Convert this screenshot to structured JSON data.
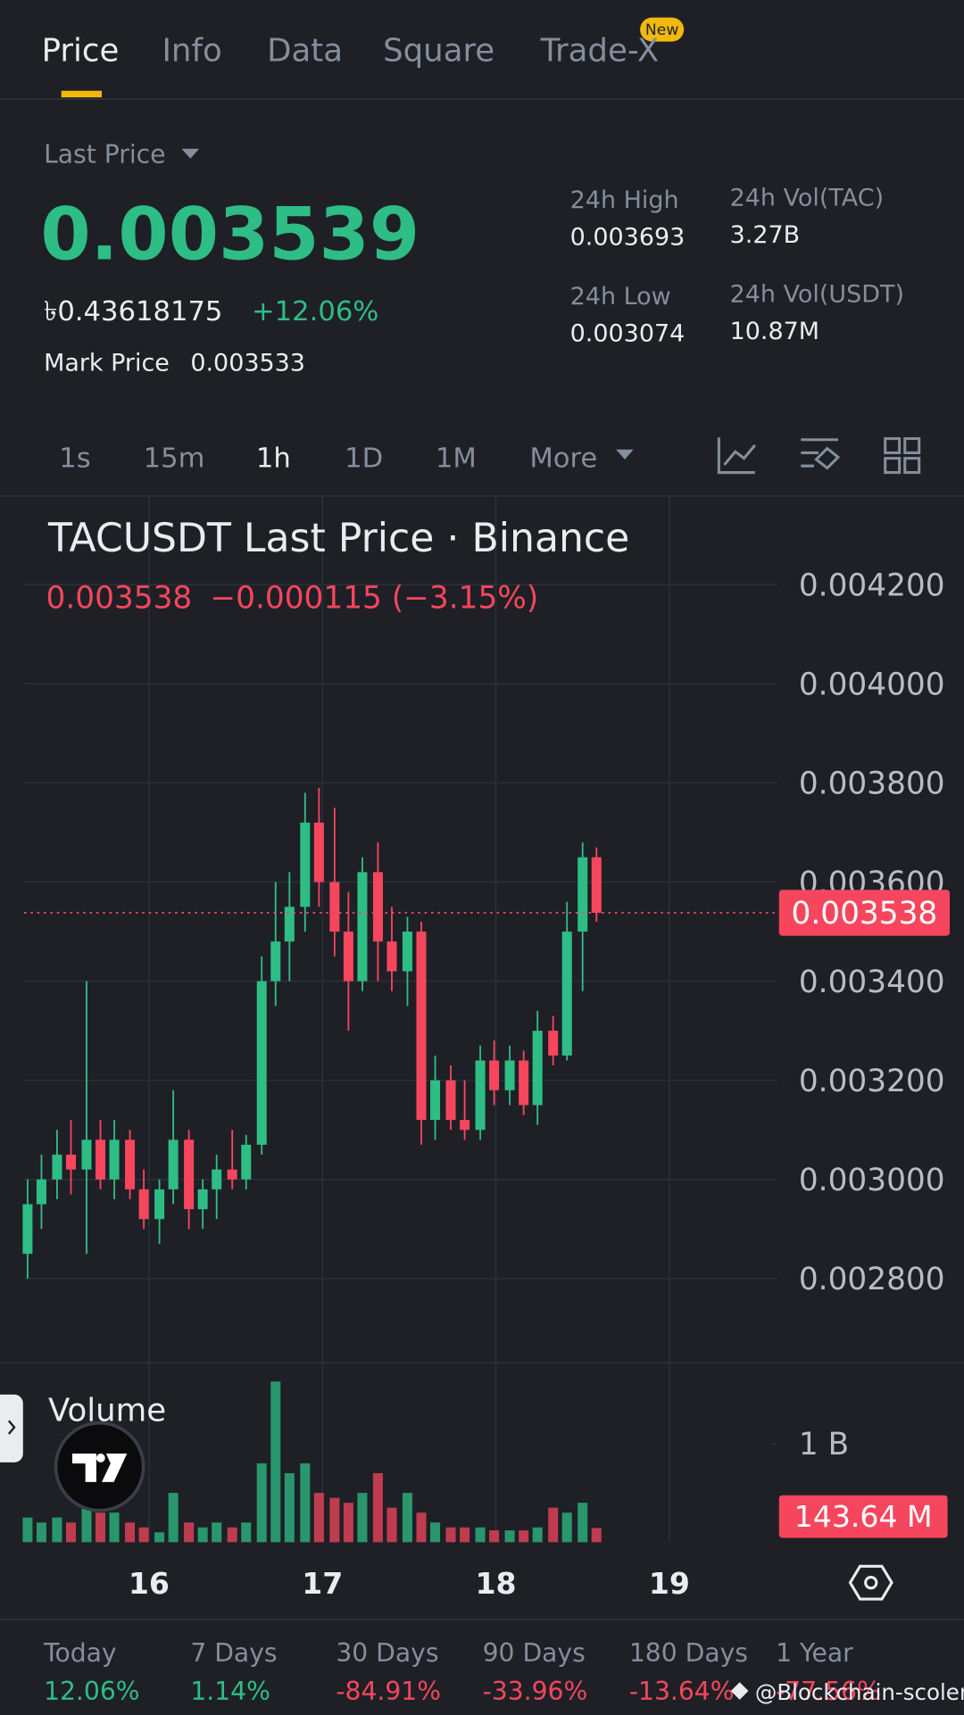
{
  "tabs": [
    "Price",
    "Info",
    "Data",
    "Square",
    "Trade-X"
  ],
  "badge": "New",
  "ticker": {
    "last_price_label": "Last Price",
    "last_price": "0.003539",
    "fiat": "৳0.43618175",
    "change": "+12.06%",
    "mark_price_label": "Mark Price",
    "mark_price": "0.003533",
    "stats": [
      {
        "label": "24h High",
        "value": "0.003693"
      },
      {
        "label": "24h Low",
        "value": "0.003074"
      },
      {
        "label": "24h Vol(TAC)",
        "value": "3.27B"
      },
      {
        "label": "24h Vol(USDT)",
        "value": "10.87M"
      }
    ]
  },
  "intervals": [
    "1s",
    "15m",
    "1h",
    "1D",
    "1M",
    "More"
  ],
  "chart_data": {
    "type": "candlestick",
    "title": "TACUSDT Last Price · Binance",
    "subtitle": "−0.000115 (−3.15%)",
    "last_price": 0.003538,
    "up_color": "#2ebd85",
    "down_color": "#f6465d",
    "grid": true,
    "x": [
      15.3,
      15.38,
      15.47,
      15.55,
      15.64,
      15.72,
      15.8,
      15.89,
      15.97,
      16.06,
      16.14,
      16.23,
      16.31,
      16.39,
      16.48,
      16.56,
      16.65,
      16.73,
      16.81,
      16.9,
      16.98,
      17.07,
      17.15,
      17.23,
      17.32,
      17.4,
      17.49,
      17.57,
      17.65,
      17.74,
      17.82,
      17.91,
      17.99,
      18.08,
      18.16,
      18.24,
      18.33,
      18.41,
      18.5,
      18.58
    ],
    "open": [
      0.00285,
      0.00295,
      0.003,
      0.00305,
      0.00302,
      0.00308,
      0.003,
      0.00308,
      0.00298,
      0.00292,
      0.00298,
      0.00308,
      0.00294,
      0.00298,
      0.00302,
      0.003,
      0.00307,
      0.0034,
      0.00348,
      0.00355,
      0.00372,
      0.0036,
      0.0035,
      0.0034,
      0.00362,
      0.00348,
      0.00342,
      0.0035,
      0.00312,
      0.0032,
      0.00312,
      0.0031,
      0.00324,
      0.00318,
      0.00324,
      0.00315,
      0.0033,
      0.00325,
      0.0035,
      0.00365
    ],
    "high": [
      0.003,
      0.00305,
      0.0031,
      0.00312,
      0.0034,
      0.00312,
      0.00312,
      0.0031,
      0.00302,
      0.003,
      0.00318,
      0.0031,
      0.003,
      0.00305,
      0.0031,
      0.00309,
      0.00345,
      0.0036,
      0.00362,
      0.00378,
      0.00379,
      0.00375,
      0.00358,
      0.00365,
      0.00368,
      0.00355,
      0.00353,
      0.00352,
      0.00325,
      0.00323,
      0.0032,
      0.00327,
      0.00328,
      0.00327,
      0.00326,
      0.00334,
      0.00333,
      0.00356,
      0.00368,
      0.00367
    ],
    "low": [
      0.0028,
      0.0029,
      0.00296,
      0.00297,
      0.00285,
      0.00298,
      0.00296,
      0.00296,
      0.0029,
      0.00287,
      0.00295,
      0.0029,
      0.0029,
      0.00292,
      0.00298,
      0.00298,
      0.00305,
      0.00335,
      0.0034,
      0.0035,
      0.00355,
      0.00345,
      0.0033,
      0.00338,
      0.0034,
      0.00338,
      0.00335,
      0.00307,
      0.00308,
      0.0031,
      0.00308,
      0.00308,
      0.00315,
      0.00315,
      0.00313,
      0.00311,
      0.00323,
      0.00324,
      0.00338,
      0.00352
    ],
    "close": [
      0.00295,
      0.003,
      0.00305,
      0.00302,
      0.00308,
      0.003,
      0.00308,
      0.00298,
      0.00292,
      0.00298,
      0.00308,
      0.00294,
      0.00298,
      0.00302,
      0.003,
      0.00307,
      0.0034,
      0.00348,
      0.00355,
      0.00372,
      0.0036,
      0.0035,
      0.0034,
      0.00362,
      0.00348,
      0.00342,
      0.0035,
      0.00312,
      0.0032,
      0.00312,
      0.0031,
      0.00324,
      0.00318,
      0.00324,
      0.00315,
      0.0033,
      0.00325,
      0.0035,
      0.00365,
      0.003538
    ],
    "volume": [
      250000000,
      200000000,
      250000000,
      200000000,
      450000000,
      300000000,
      300000000,
      200000000,
      150000000,
      100000000,
      500000000,
      200000000,
      150000000,
      200000000,
      150000000,
      200000000,
      800000000,
      1630000000,
      700000000,
      800000000,
      500000000,
      450000000,
      400000000,
      500000000,
      700000000,
      350000000,
      500000000,
      300000000,
      200000000,
      150000000,
      150000000,
      150000000,
      120000000,
      120000000,
      120000000,
      150000000,
      350000000,
      300000000,
      400000000,
      143640000
    ],
    "xlim": [
      15.28,
      19.62
    ],
    "xticks": [
      16,
      17,
      18,
      19
    ],
    "ylim": [
      0.00263,
      0.00438
    ],
    "yticks": [
      {
        "value": 0.0028,
        "label": "0.002800"
      },
      {
        "value": 0.003,
        "label": "0.003000"
      },
      {
        "value": 0.0032,
        "label": "0.003200"
      },
      {
        "value": 0.0034,
        "label": "0.003400"
      },
      {
        "value": 0.0036,
        "label": "0.003600"
      },
      {
        "value": 0.0038,
        "label": "0.003800"
      },
      {
        "value": 0.004,
        "label": "0.004000"
      },
      {
        "value": 0.0042,
        "label": "0.004200"
      }
    ],
    "volume_title": "Volume",
    "volume_ylim": [
      0,
      1820000000
    ],
    "volume_yticks": [
      {
        "value": 1000000000,
        "label": "1 B"
      }
    ],
    "volume_last": {
      "value": 143640000,
      "label": "143.64 M"
    }
  },
  "performance": [
    {
      "label": "Today",
      "value": "12.06%"
    },
    {
      "label": "7 Days",
      "value": "1.14%"
    },
    {
      "label": "30 Days",
      "value": "-84.91%"
    },
    {
      "label": "90 Days",
      "value": "-33.96%"
    },
    {
      "label": "180 Days",
      "value": "-13.64%"
    },
    {
      "label": "1 Year",
      "value": "-77.56%"
    }
  ],
  "watermark": "@Blockchain-scoler"
}
